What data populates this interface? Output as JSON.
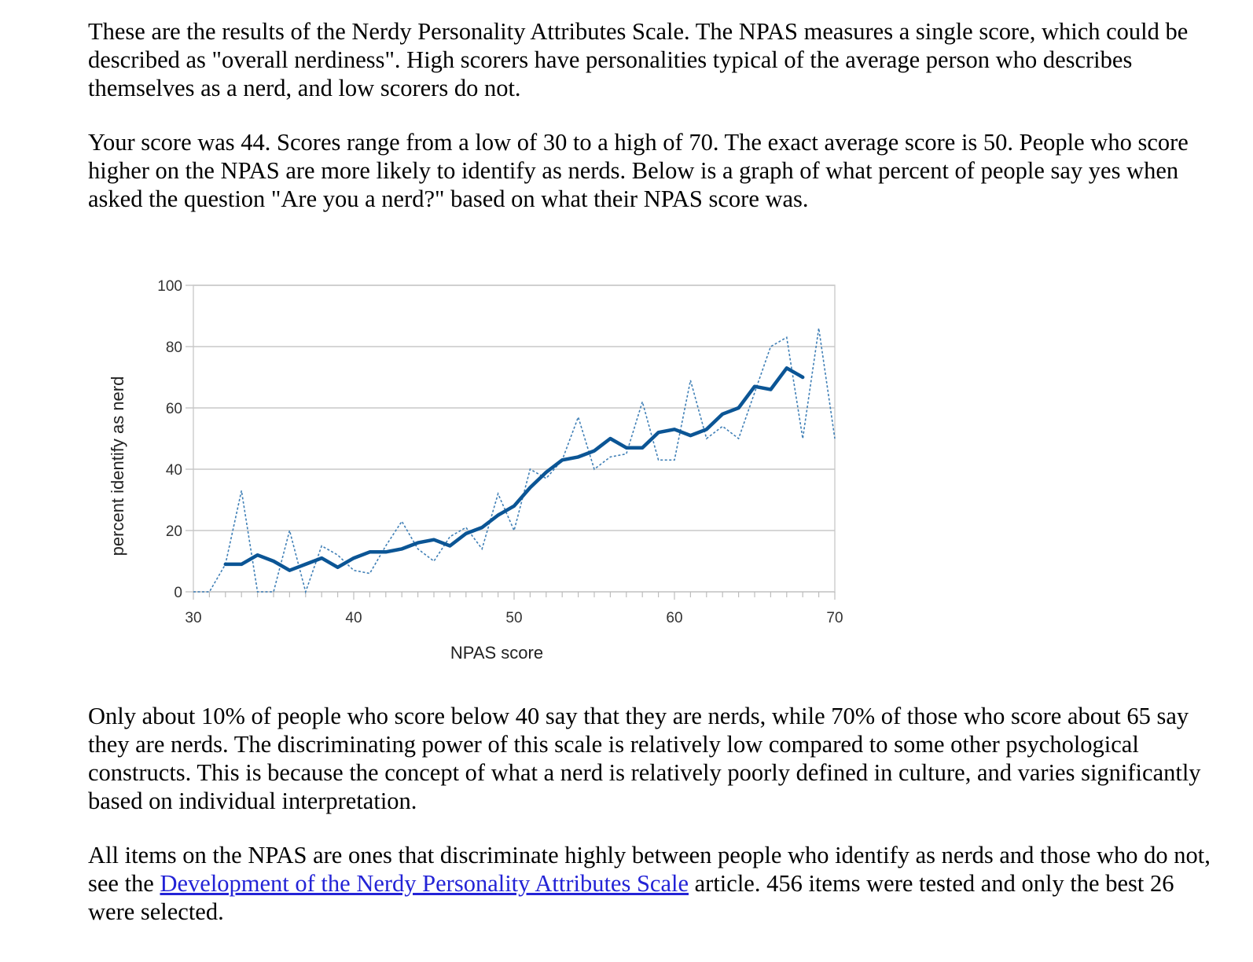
{
  "paragraphs": {
    "intro": "These are the results of the Nerdy Personality Attributes Scale. The NPAS measures a single score, which could be described as \"overall nerdiness\". High scorers have personalities typical of the average person who describes themselves as a nerd, and low scorers do not.",
    "score": "Your score was 44. Scores range from a low of 30 to a high of 70. The exact average score is 50. People who score higher on the NPAS are more likely to identify as nerds. Below is a graph of what percent of people say yes when asked the question \"Are you a nerd?\" based on what their NPAS score was.",
    "discrimination": "Only about 10% of people who score below 40 say that they are nerds, while 70% of those who score about 65 say they are nerds. The discriminating power of this scale is relatively low compared to some other psychological constructs. This is because the concept of what a nerd is relatively poorly defined in culture, and varies significantly based on individual interpretation.",
    "items_before": "All items on the NPAS are ones that discriminate highly between people who identify as nerds and those who do not, see the ",
    "items_link": "Development of the Nerdy Personality Attributes Scale",
    "items_after": " article. 456 items were tested and only the best 26 were selected."
  },
  "colors": {
    "text": "#000000",
    "link": "#2323d6",
    "series": "#0b5595",
    "grid": "#c8c8c8"
  },
  "chart_data": {
    "type": "line",
    "xlabel": "NPAS score",
    "ylabel": "percent identify as nerd",
    "xlim": [
      30,
      70
    ],
    "ylim": [
      0,
      100
    ],
    "x_ticks": [
      30,
      40,
      50,
      60,
      70
    ],
    "y_ticks": [
      0,
      20,
      40,
      60,
      80,
      100
    ],
    "grid": "horizontal",
    "series": [
      {
        "style": "dashed-raw",
        "x": [
          30,
          31,
          32,
          33,
          34,
          35,
          36,
          37,
          38,
          39,
          40,
          41,
          42,
          43,
          44,
          45,
          46,
          47,
          48,
          49,
          50,
          51,
          52,
          53,
          54,
          55,
          56,
          57,
          58,
          59,
          60,
          61,
          62,
          63,
          64,
          65,
          66,
          67,
          68,
          69,
          70
        ],
        "y": [
          0,
          0,
          9,
          33,
          0,
          0,
          20,
          0,
          15,
          12,
          7,
          6,
          15,
          23,
          14,
          10,
          18,
          21,
          14,
          32,
          20,
          40,
          37,
          43,
          57,
          40,
          44,
          45,
          62,
          43,
          43,
          69,
          50,
          54,
          50,
          65,
          80,
          83,
          50,
          86,
          50
        ]
      },
      {
        "style": "solid-smoothed",
        "x": [
          32,
          33,
          34,
          35,
          36,
          37,
          38,
          39,
          40,
          41,
          42,
          43,
          44,
          45,
          46,
          47,
          48,
          49,
          50,
          51,
          52,
          53,
          54,
          55,
          56,
          57,
          58,
          59,
          60,
          61,
          62,
          63,
          64,
          65,
          66,
          67,
          68
        ],
        "y": [
          9,
          9,
          12,
          10,
          7,
          9,
          11,
          8,
          11,
          13,
          13,
          14,
          16,
          17,
          15,
          19,
          21,
          25,
          28,
          34,
          39,
          43,
          44,
          46,
          50,
          47,
          47,
          52,
          53,
          51,
          53,
          58,
          60,
          67,
          66,
          73,
          70
        ]
      }
    ]
  }
}
